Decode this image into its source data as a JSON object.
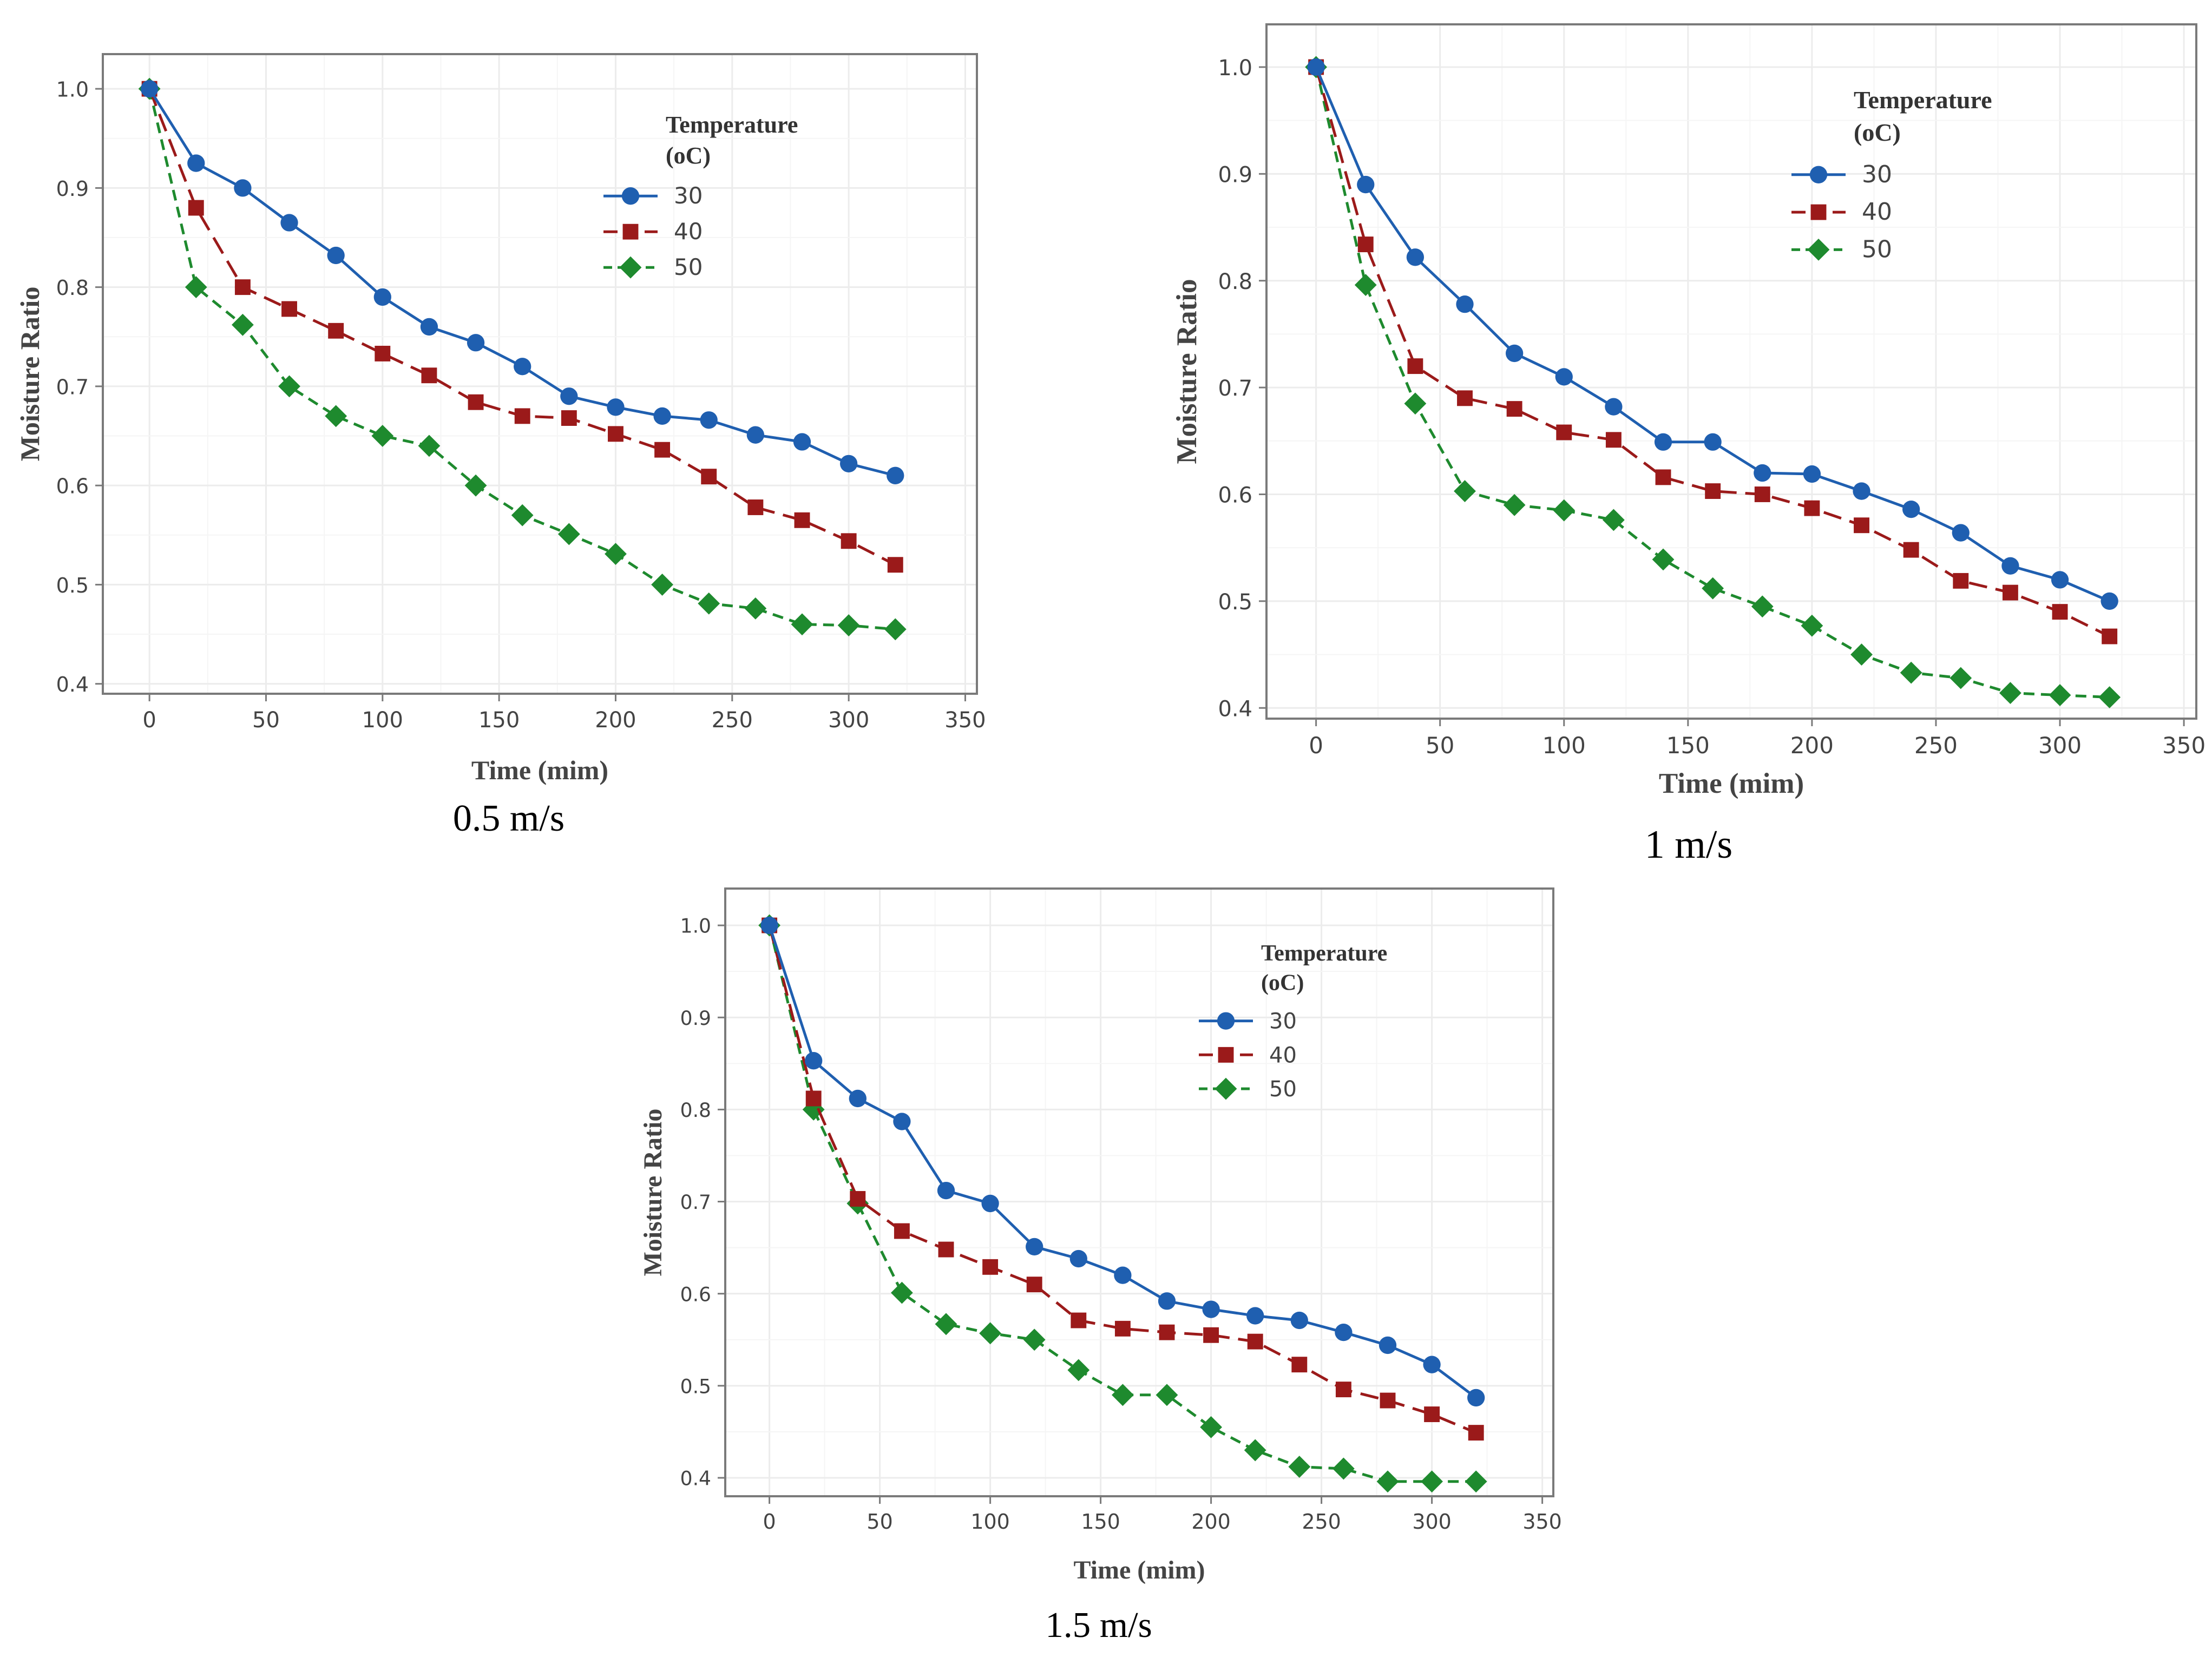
{
  "colors": {
    "series_30": "#1f5fb0",
    "series_40": "#9b1a1a",
    "series_50": "#1e8a2e",
    "frame": "#7a7a7a",
    "grid": "#ececec",
    "text": "#444444"
  },
  "chart_data": [
    {
      "type": "line",
      "caption": "0.5 m/s",
      "xlabel": "Time (mim)",
      "ylabel": "Moisture Ratio",
      "xlim": [
        -20,
        355
      ],
      "ylim": [
        0.39,
        1.035
      ],
      "xticks": [
        0,
        50,
        100,
        150,
        200,
        250,
        300,
        350
      ],
      "yticks": [
        0.4,
        0.5,
        0.6,
        0.7,
        0.8,
        0.9,
        1.0
      ],
      "legend_title": [
        "Temperature",
        "(oC)"
      ],
      "legend_position": "top-right",
      "x": [
        0,
        20,
        40,
        60,
        80,
        100,
        120,
        140,
        160,
        180,
        200,
        220,
        240,
        260,
        280,
        300,
        320
      ],
      "series": [
        {
          "name": "30",
          "marker": "circle",
          "dash": "solid",
          "values": [
            1.0,
            0.925,
            0.9,
            0.865,
            0.832,
            0.79,
            0.76,
            0.744,
            0.72,
            0.69,
            0.679,
            0.67,
            0.666,
            0.651,
            0.644,
            0.622,
            0.61
          ]
        },
        {
          "name": "40",
          "marker": "square",
          "dash": "longdash",
          "values": [
            1.0,
            0.88,
            0.8,
            0.778,
            0.756,
            0.733,
            0.711,
            0.684,
            0.67,
            0.668,
            0.652,
            0.636,
            0.609,
            0.578,
            0.565,
            0.544,
            0.52
          ]
        },
        {
          "name": "50",
          "marker": "diamond",
          "dash": "dash",
          "values": [
            1.0,
            0.8,
            0.762,
            0.7,
            0.67,
            0.65,
            0.64,
            0.6,
            0.57,
            0.551,
            0.531,
            0.5,
            0.481,
            0.476,
            0.46,
            0.459,
            0.455
          ]
        }
      ]
    },
    {
      "type": "line",
      "caption": "1 m/s",
      "xlabel": "Time (mim)",
      "ylabel": "Moisture Ratio",
      "xlim": [
        -20,
        355
      ],
      "ylim": [
        0.39,
        1.04
      ],
      "xticks": [
        0,
        50,
        100,
        150,
        200,
        250,
        300,
        350
      ],
      "yticks": [
        0.4,
        0.5,
        0.6,
        0.7,
        0.8,
        0.9,
        1.0
      ],
      "legend_title": [
        "Temperature",
        "(oC)"
      ],
      "legend_position": "top-right",
      "x": [
        0,
        20,
        40,
        60,
        80,
        100,
        120,
        140,
        160,
        180,
        200,
        220,
        240,
        260,
        280,
        300,
        320
      ],
      "series": [
        {
          "name": "30",
          "marker": "circle",
          "dash": "solid",
          "values": [
            1.0,
            0.89,
            0.822,
            0.778,
            0.732,
            0.71,
            0.682,
            0.649,
            0.649,
            0.62,
            0.619,
            0.603,
            0.586,
            0.564,
            0.533,
            0.52,
            0.5
          ]
        },
        {
          "name": "40",
          "marker": "square",
          "dash": "longdash",
          "values": [
            1.0,
            0.834,
            0.72,
            0.69,
            0.68,
            0.658,
            0.651,
            0.616,
            0.603,
            0.6,
            0.587,
            0.571,
            0.548,
            0.519,
            0.508,
            0.49,
            0.467
          ]
        },
        {
          "name": "50",
          "marker": "diamond",
          "dash": "dash",
          "values": [
            1.0,
            0.796,
            0.685,
            0.603,
            0.59,
            0.585,
            0.576,
            0.539,
            0.512,
            0.495,
            0.477,
            0.45,
            0.433,
            0.428,
            0.414,
            0.412,
            0.41
          ]
        }
      ]
    },
    {
      "type": "line",
      "caption": "1.5 m/s",
      "xlabel": "Time (mim)",
      "ylabel": "Moisture Ratio",
      "xlim": [
        -20,
        355
      ],
      "ylim": [
        0.38,
        1.04
      ],
      "xticks": [
        0,
        50,
        100,
        150,
        200,
        250,
        300,
        350
      ],
      "yticks": [
        0.4,
        0.5,
        0.6,
        0.7,
        0.8,
        0.9,
        1.0
      ],
      "legend_title": [
        "Temperature",
        "(oC)"
      ],
      "legend_position": "top-right",
      "x": [
        0,
        20,
        40,
        60,
        80,
        100,
        120,
        140,
        160,
        180,
        200,
        220,
        240,
        260,
        280,
        300,
        320
      ],
      "series": [
        {
          "name": "30",
          "marker": "circle",
          "dash": "solid",
          "values": [
            1.0,
            0.853,
            0.812,
            0.787,
            0.712,
            0.698,
            0.651,
            0.638,
            0.62,
            0.592,
            0.583,
            0.576,
            0.571,
            0.558,
            0.544,
            0.523,
            0.487
          ]
        },
        {
          "name": "40",
          "marker": "square",
          "dash": "longdash",
          "values": [
            1.0,
            0.812,
            0.703,
            0.668,
            0.648,
            0.629,
            0.61,
            0.571,
            0.562,
            0.558,
            0.555,
            0.548,
            0.523,
            0.496,
            0.484,
            0.469,
            0.449
          ]
        },
        {
          "name": "50",
          "marker": "diamond",
          "dash": "dash",
          "values": [
            1.0,
            0.8,
            0.698,
            0.601,
            0.567,
            0.557,
            0.55,
            0.517,
            0.49,
            0.49,
            0.455,
            0.43,
            0.412,
            0.41,
            0.396,
            0.396,
            0.396
          ]
        }
      ]
    }
  ]
}
